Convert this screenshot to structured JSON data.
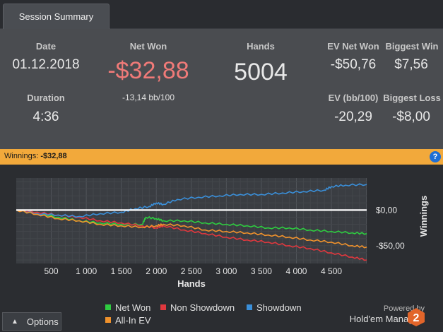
{
  "tab": {
    "label": "Session Summary"
  },
  "summary": {
    "date_label": "Date",
    "date_value": "01.12.2018",
    "duration_label": "Duration",
    "duration_value": "4:36",
    "net_won_label": "Net Won",
    "net_won_value": "-$32,88",
    "net_won_sub": "-13,14 bb/100",
    "hands_label": "Hands",
    "hands_value": "5004",
    "ev_net_won_label": "EV Net Won",
    "ev_net_won_value": "-$50,76",
    "ev_bb_label": "EV (bb/100)",
    "ev_bb_value": "-20,29",
    "biggest_win_label": "Biggest Win",
    "biggest_win_value": "$7,56",
    "biggest_loss_label": "Biggest Loss",
    "biggest_loss_value": "-$8,00"
  },
  "winnings_bar": {
    "label": "Winnings:",
    "value": "-$32,88",
    "help_icon": "?"
  },
  "colors": {
    "net_won": "#2ecc40",
    "non_showdown": "#e0383e",
    "showdown": "#3a8fd9",
    "all_in_ev": "#f0922c",
    "accent": "#f2a93b",
    "negative": "#f07a78"
  },
  "chart_data": {
    "type": "line",
    "xlabel": "Hands",
    "ylabel": "Winnings",
    "xlim": [
      0,
      5004
    ],
    "ylim": [
      -75,
      45
    ],
    "x_ticks": [
      500,
      1000,
      1500,
      2000,
      2500,
      3000,
      3500,
      4000,
      4500
    ],
    "x_tick_labels": [
      "500",
      "1 000",
      "1 500",
      "2 000",
      "2 500",
      "3 000",
      "3 500",
      "4 000",
      "4 500"
    ],
    "y_ticks": [
      0,
      -50
    ],
    "y_tick_labels": [
      "$0,00",
      "-$50,00"
    ],
    "grid": true,
    "legend_position": "bottom",
    "series": [
      {
        "name": "Net Won",
        "color": "#2ecc40",
        "x": [
          0,
          300,
          600,
          900,
          1200,
          1500,
          1800,
          1850,
          2000,
          2100,
          2400,
          2700,
          3000,
          3300,
          3600,
          3900,
          4200,
          4500,
          4800,
          5004
        ],
        "y": [
          0,
          -5,
          -10,
          -15,
          -18,
          -20,
          -20,
          -10,
          -12,
          -15,
          -15,
          -18,
          -20,
          -22,
          -25,
          -25,
          -28,
          -30,
          -32,
          -33
        ]
      },
      {
        "name": "Non Showdown",
        "color": "#e0383e",
        "x": [
          0,
          300,
          600,
          900,
          1200,
          1500,
          1800,
          2000,
          2100,
          2400,
          2700,
          3000,
          3300,
          3600,
          3900,
          4200,
          4500,
          4800,
          5004
        ],
        "y": [
          0,
          -3,
          -7,
          -10,
          -15,
          -18,
          -22,
          -25,
          -22,
          -28,
          -33,
          -38,
          -42,
          -45,
          -50,
          -54,
          -60,
          -66,
          -70
        ]
      },
      {
        "name": "Showdown",
        "color": "#3a8fd9",
        "x": [
          0,
          300,
          600,
          900,
          1200,
          1500,
          1700,
          1900,
          2000,
          2100,
          2300,
          2600,
          2900,
          3200,
          3500,
          3800,
          4100,
          4400,
          4500,
          4700,
          5004
        ],
        "y": [
          0,
          -5,
          -7,
          -9,
          -5,
          -3,
          2,
          5,
          10,
          8,
          15,
          18,
          20,
          22,
          22,
          24,
          26,
          28,
          33,
          35,
          36
        ]
      },
      {
        "name": "All-In EV",
        "color": "#f0922c",
        "x": [
          0,
          300,
          600,
          900,
          1200,
          1500,
          1800,
          2000,
          2100,
          2400,
          2700,
          3000,
          3300,
          3600,
          3900,
          4200,
          4500,
          4800,
          5004
        ],
        "y": [
          0,
          -6,
          -12,
          -15,
          -20,
          -22,
          -24,
          -22,
          -20,
          -22,
          -28,
          -30,
          -32,
          -35,
          -38,
          -42,
          -45,
          -50,
          -52
        ]
      }
    ]
  },
  "legend": {
    "net_won": "Net Won",
    "non_showdown": "Non Showdown",
    "showdown": "Showdown",
    "all_in_ev": "All-In EV"
  },
  "footer": {
    "options_label": "Options",
    "powered_by": "Powered by",
    "brand": "Hold'em Manager",
    "brand_version": "2"
  }
}
